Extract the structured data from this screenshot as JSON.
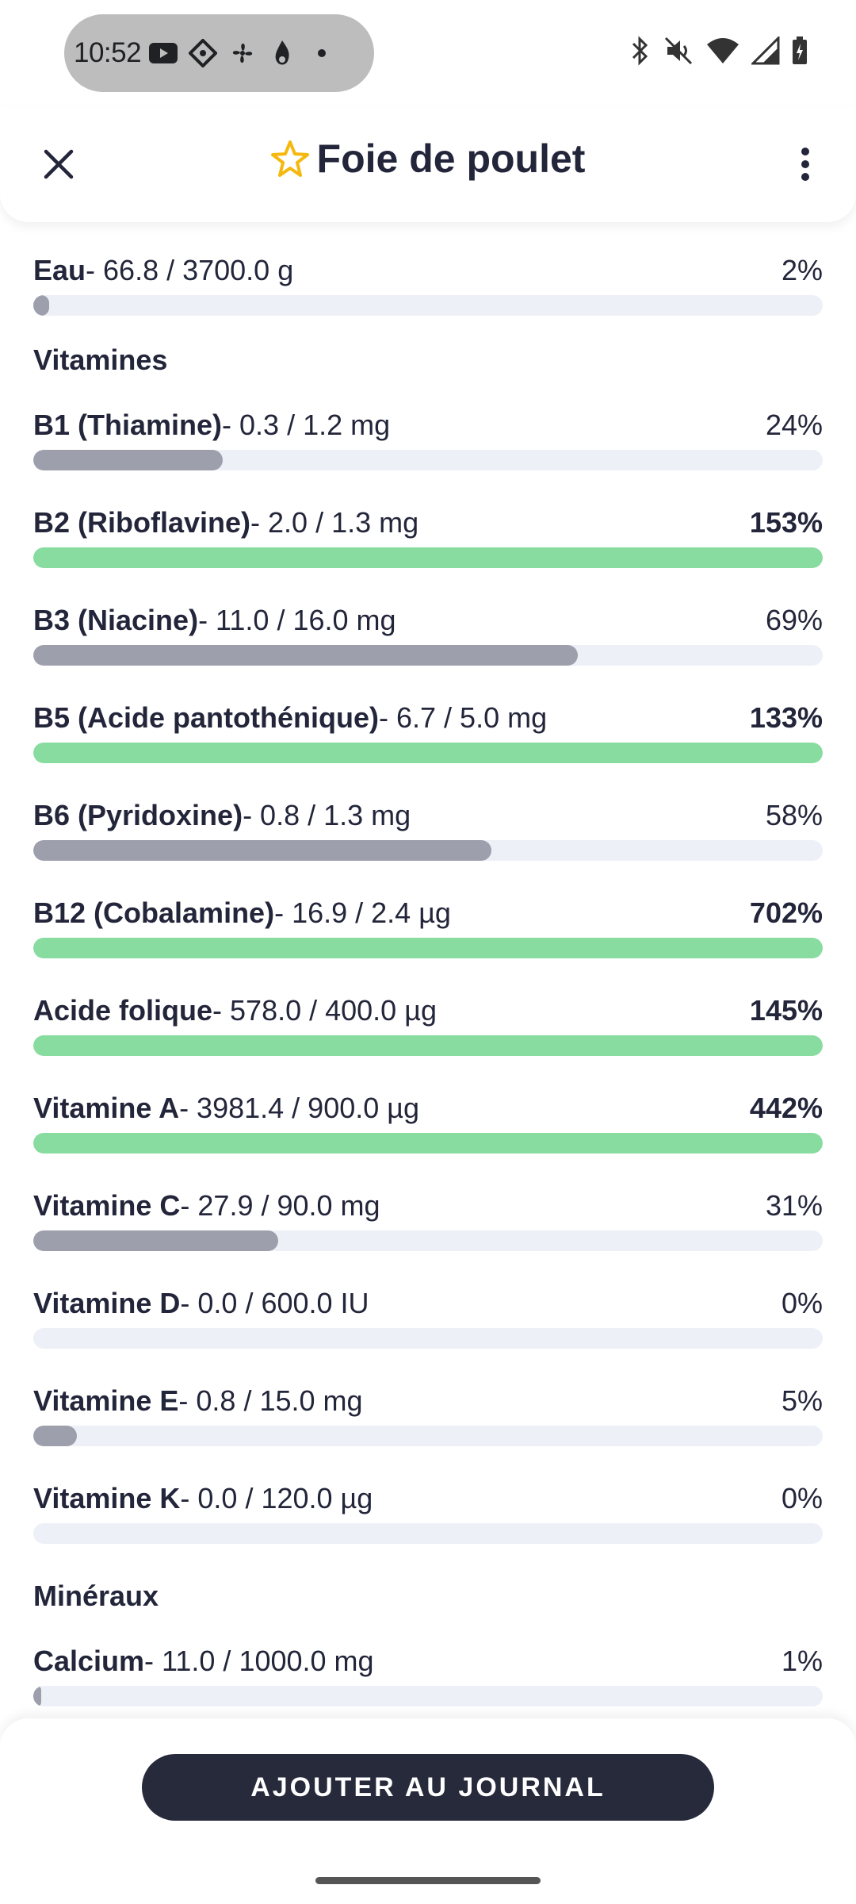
{
  "status": {
    "time": "10:52"
  },
  "header": {
    "title": "Foie de poulet"
  },
  "water": {
    "label": "Eau",
    "value": "- 66.8 / 3700.0 g",
    "pct": "2%",
    "fill": 0.02,
    "over": false
  },
  "vitamins": {
    "title": "Vitamines",
    "items": [
      {
        "label": "B1 (Thiamine)",
        "value": "- 0.3 / 1.2 mg",
        "pct": "24%",
        "fill": 0.24,
        "over": false
      },
      {
        "label": "B2 (Riboflavine)",
        "value": "- 2.0 / 1.3 mg",
        "pct": "153%",
        "fill": 1.0,
        "over": true
      },
      {
        "label": "B3 (Niacine)",
        "value": "- 11.0 / 16.0 mg",
        "pct": "69%",
        "fill": 0.69,
        "over": false
      },
      {
        "label": "B5 (Acide pantothénique)",
        "value": "- 6.7 / 5.0 mg",
        "pct": "133%",
        "fill": 1.0,
        "over": true
      },
      {
        "label": "B6 (Pyridoxine)",
        "value": "- 0.8 / 1.3 mg",
        "pct": "58%",
        "fill": 0.58,
        "over": false
      },
      {
        "label": "B12 (Cobalamine)",
        "value": "- 16.9 / 2.4 µg",
        "pct": "702%",
        "fill": 1.0,
        "over": true
      },
      {
        "label": "Acide folique",
        "value": "- 578.0 / 400.0 µg",
        "pct": "145%",
        "fill": 1.0,
        "over": true
      },
      {
        "label": "Vitamine A",
        "value": "- 3981.4 / 900.0 µg",
        "pct": "442%",
        "fill": 1.0,
        "over": true
      },
      {
        "label": "Vitamine C",
        "value": "- 27.9 / 90.0 mg",
        "pct": "31%",
        "fill": 0.31,
        "over": false
      },
      {
        "label": "Vitamine D",
        "value": "- 0.0 / 600.0 IU",
        "pct": "0%",
        "fill": 0.0,
        "over": false
      },
      {
        "label": "Vitamine E",
        "value": "- 0.8 / 15.0 mg",
        "pct": "5%",
        "fill": 0.055,
        "over": false
      },
      {
        "label": "Vitamine K",
        "value": "- 0.0 / 120.0 µg",
        "pct": "0%",
        "fill": 0.0,
        "over": false
      }
    ]
  },
  "minerals": {
    "title": "Minéraux",
    "items": [
      {
        "label": "Calcium",
        "value": "- 11.0 / 1000.0 mg",
        "pct": "1%",
        "fill": 0.01,
        "over": false
      }
    ]
  },
  "actions": {
    "add_label": "AJOUTER AU JOURNAL"
  },
  "colors": {
    "bar_normal": "#9d9fad",
    "bar_over": "#88dca0",
    "track": "#eef0f8",
    "star": "#f5b80f",
    "button": "#262a3b"
  }
}
